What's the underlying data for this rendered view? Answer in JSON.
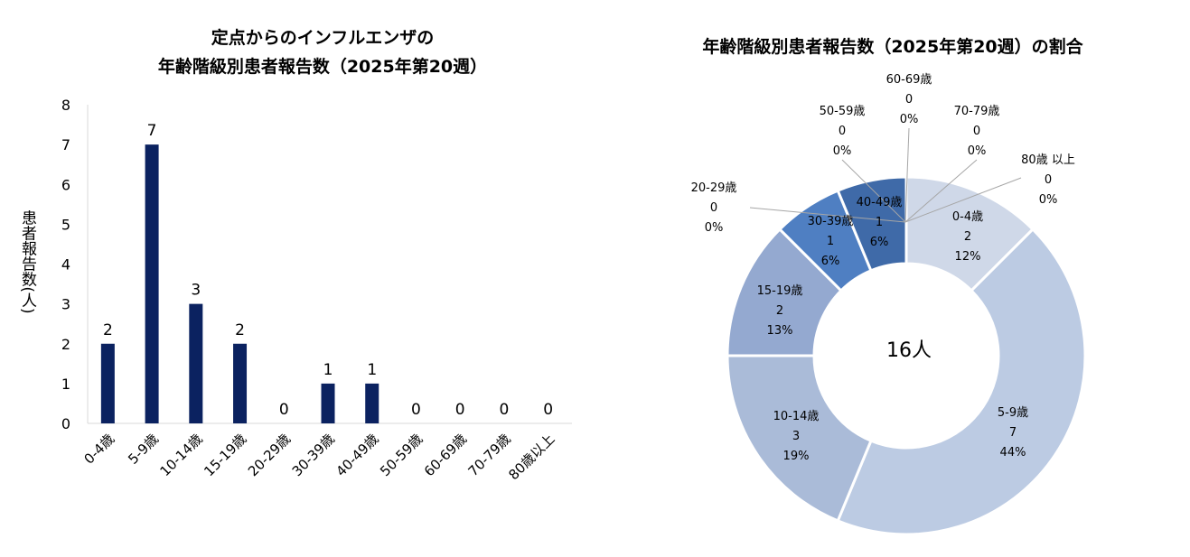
{
  "chart_data": [
    {
      "type": "bar",
      "title": [
        "定点からのインフルエンザの",
        "年齢階級別患者報告数（2025年第20週）"
      ],
      "ylabel": "患者報告数(人)",
      "xlabel": "",
      "ylim": [
        0,
        8
      ],
      "yticks": [
        "0",
        "1",
        "2",
        "3",
        "4",
        "5",
        "6",
        "7",
        "8"
      ],
      "categories": [
        "0-4歳",
        "5-9歳",
        "10-14歳",
        "15-19歳",
        "20-29歳",
        "30-39歳",
        "40-49歳",
        "50-59歳",
        "60-69歳",
        "70-79歳",
        "80歳以上"
      ],
      "values": [
        2,
        7,
        3,
        2,
        0,
        1,
        1,
        0,
        0,
        0,
        0
      ],
      "data_labels": [
        "2",
        "7",
        "3",
        "2",
        "0",
        "1",
        "1",
        "0",
        "0",
        "0",
        "0"
      ],
      "bar_color": "#0b2260",
      "grid": false,
      "legend": "none"
    },
    {
      "type": "pie",
      "variant": "donut",
      "title": "年齢階級別患者報告数（2025年第20週）の割合",
      "center_label": "16人",
      "slices": [
        {
          "label": "0-4歳",
          "value": 2,
          "percent": "12%",
          "color": "#cfd8e8"
        },
        {
          "label": "5-9歳",
          "value": 7,
          "percent": "44%",
          "color": "#bccbe3"
        },
        {
          "label": "10-14歳",
          "value": 3,
          "percent": "19%",
          "color": "#aabbd8"
        },
        {
          "label": "15-19歳",
          "value": 2,
          "percent": "13%",
          "color": "#94a9d0"
        },
        {
          "label": "20-29歳",
          "value": 0,
          "percent": "0%",
          "color": "#7f98c8"
        },
        {
          "label": "30-39歳",
          "value": 1,
          "percent": "6%",
          "color": "#4f7fc2"
        },
        {
          "label": "40-49歳",
          "value": 1,
          "percent": "6%",
          "color": "#3f6aa8"
        },
        {
          "label": "50-59歳",
          "value": 0,
          "percent": "0%",
          "color": "#3a609a"
        },
        {
          "label": "60-69歳",
          "value": 0,
          "percent": "0%",
          "color": "#34578c"
        },
        {
          "label": "70-79歳",
          "value": 0,
          "percent": "0%",
          "color": "#2f4f80"
        },
        {
          "label": "80歳 以上",
          "value": 0,
          "percent": "0%",
          "color": "#2a4674"
        }
      ],
      "legend": "none"
    }
  ]
}
